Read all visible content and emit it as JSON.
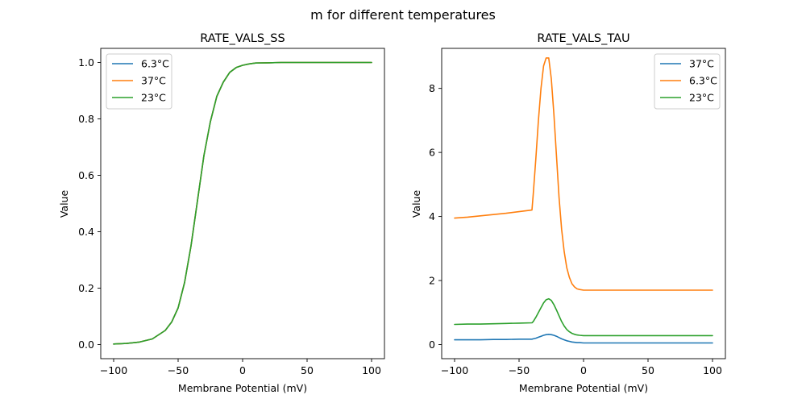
{
  "figure": {
    "suptitle": "m for different temperatures"
  },
  "chart_data": [
    {
      "type": "line",
      "title": "RATE_VALS_SS",
      "xlabel": "Membrane Potential (mV)",
      "ylabel": "Value",
      "xlim": [
        -110,
        110
      ],
      "ylim": [
        -0.05,
        1.05
      ],
      "xticks": [
        -100,
        -50,
        0,
        50,
        100
      ],
      "yticks": [
        0.0,
        0.2,
        0.4,
        0.6,
        0.8,
        1.0
      ],
      "ytick_labels": [
        "0.0",
        "0.2",
        "0.4",
        "0.6",
        "0.8",
        "1.0"
      ],
      "legend_loc": "upper-left",
      "grid": false,
      "x": [
        -100,
        -90,
        -80,
        -70,
        -60,
        -55,
        -50,
        -45,
        -40,
        -35,
        -30,
        -25,
        -20,
        -15,
        -10,
        -5,
        0,
        5,
        10,
        20,
        30,
        50,
        100
      ],
      "series": [
        {
          "name": "6.3°C",
          "color": "#1f77b4",
          "values": [
            0.002,
            0.004,
            0.009,
            0.02,
            0.05,
            0.08,
            0.13,
            0.22,
            0.35,
            0.51,
            0.67,
            0.79,
            0.88,
            0.93,
            0.965,
            0.982,
            0.99,
            0.995,
            0.998,
            0.999,
            1.0,
            1.0,
            1.0
          ]
        },
        {
          "name": "37°C",
          "color": "#ff7f0e",
          "values": [
            0.002,
            0.004,
            0.009,
            0.02,
            0.05,
            0.08,
            0.13,
            0.22,
            0.35,
            0.51,
            0.67,
            0.79,
            0.88,
            0.93,
            0.965,
            0.982,
            0.99,
            0.995,
            0.998,
            0.999,
            1.0,
            1.0,
            1.0
          ]
        },
        {
          "name": "23°C",
          "color": "#2ca02c",
          "values": [
            0.002,
            0.004,
            0.009,
            0.02,
            0.05,
            0.08,
            0.13,
            0.22,
            0.35,
            0.51,
            0.67,
            0.79,
            0.88,
            0.93,
            0.965,
            0.982,
            0.99,
            0.995,
            0.998,
            0.999,
            1.0,
            1.0,
            1.0
          ]
        }
      ]
    },
    {
      "type": "line",
      "title": "RATE_VALS_TAU",
      "xlabel": "Membrane Potential (mV)",
      "ylabel": "Value",
      "xlim": [
        -110,
        110
      ],
      "ylim": [
        -0.44,
        9.25
      ],
      "xticks": [
        -100,
        -50,
        0,
        50,
        100
      ],
      "yticks": [
        0,
        2,
        4,
        6,
        8
      ],
      "ytick_labels": [
        "0",
        "2",
        "4",
        "6",
        "8"
      ],
      "legend_loc": "upper-right",
      "grid": false,
      "x": [
        -100,
        -90,
        -80,
        -70,
        -60,
        -50,
        -40,
        -39,
        -37,
        -35,
        -33,
        -31,
        -29,
        -27,
        -25,
        -23,
        -21,
        -19,
        -17,
        -15,
        -13,
        -11,
        -9,
        -7,
        -5,
        -3,
        0,
        5,
        10,
        20,
        50,
        100
      ],
      "series": [
        {
          "name": "37°C",
          "color": "#1f77b4",
          "values": [
            0.15,
            0.15,
            0.15,
            0.16,
            0.16,
            0.17,
            0.17,
            0.18,
            0.2,
            0.23,
            0.26,
            0.29,
            0.31,
            0.32,
            0.31,
            0.29,
            0.26,
            0.22,
            0.18,
            0.15,
            0.12,
            0.1,
            0.08,
            0.07,
            0.06,
            0.06,
            0.05,
            0.05,
            0.05,
            0.05,
            0.05,
            0.05
          ]
        },
        {
          "name": "6.3°C",
          "color": "#ff7f0e",
          "values": [
            3.95,
            3.98,
            4.02,
            4.06,
            4.1,
            4.15,
            4.2,
            4.7,
            5.8,
            7.0,
            8.0,
            8.7,
            8.95,
            8.95,
            8.3,
            7.2,
            5.9,
            4.6,
            3.6,
            2.9,
            2.4,
            2.1,
            1.9,
            1.8,
            1.74,
            1.72,
            1.7,
            1.7,
            1.7,
            1.7,
            1.7,
            1.7
          ]
        },
        {
          "name": "23°C",
          "color": "#2ca02c",
          "values": [
            0.63,
            0.64,
            0.64,
            0.65,
            0.66,
            0.67,
            0.68,
            0.72,
            0.85,
            1.0,
            1.15,
            1.3,
            1.4,
            1.43,
            1.38,
            1.25,
            1.08,
            0.9,
            0.72,
            0.58,
            0.47,
            0.4,
            0.35,
            0.32,
            0.3,
            0.29,
            0.28,
            0.28,
            0.28,
            0.28,
            0.28,
            0.28
          ]
        }
      ]
    }
  ]
}
